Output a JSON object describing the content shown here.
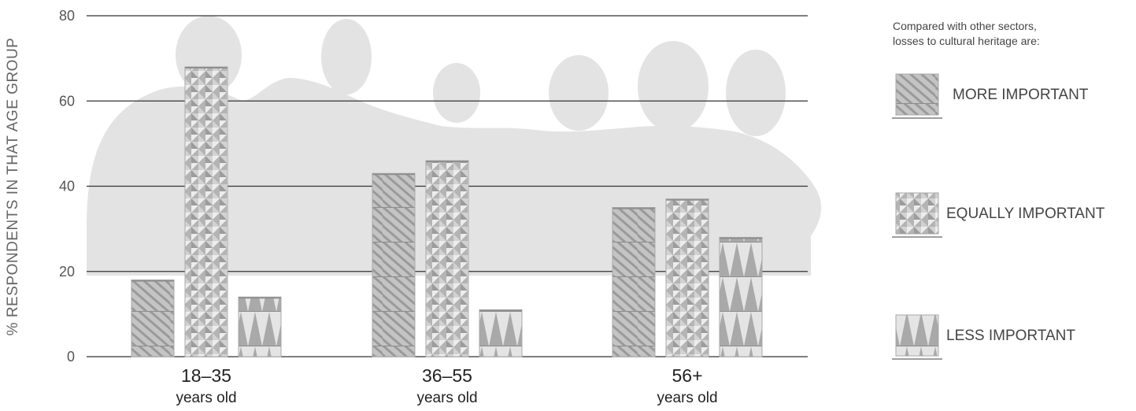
{
  "chart_data": {
    "type": "bar",
    "title": "",
    "xlabel": "",
    "ylabel": "% RESPONDENTS IN THAT AGE GROUP",
    "ylim": [
      0,
      80
    ],
    "yticks": [
      "0",
      "20",
      "40",
      "60",
      "80"
    ],
    "grid": true,
    "legend_position": "right",
    "legend_title": "Compared with other sectors, losses to cultural heritage are:",
    "categories": [
      {
        "main": "18–35",
        "sub": "years old"
      },
      {
        "main": "36–55",
        "sub": "years old"
      },
      {
        "main": "56+",
        "sub": "years old"
      }
    ],
    "series": [
      {
        "name": "MORE IMPORTANT",
        "pattern": "diagonal-stripes",
        "values": [
          18,
          43,
          35
        ]
      },
      {
        "name": "EQUALLY IMPORTANT",
        "pattern": "triangle-checker",
        "values": [
          68,
          46,
          37
        ]
      },
      {
        "name": "LESS IMPORTANT",
        "pattern": "vertical-triangles",
        "values": [
          14,
          11,
          28
        ]
      }
    ],
    "colors": {
      "bar_fill": "#b7b7b7",
      "pattern_dark": "#9a9a9a",
      "pattern_light": "#e0e0e0",
      "grid": "#333333",
      "silhouette": "#e3e3e3"
    }
  }
}
